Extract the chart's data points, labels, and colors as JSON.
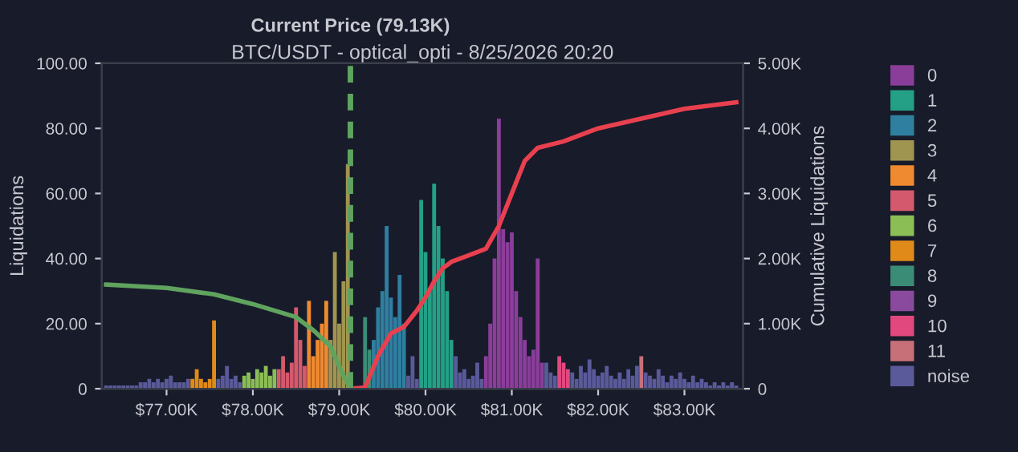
{
  "chart_data": {
    "type": "bar",
    "title": "BTC/USDT - optical_opti - 8/25/2026 20:20",
    "ylabel": "Liquidations",
    "y2label": "Cumulative Liquidations",
    "series": [
      {
        "name": "0",
        "color": "#8a3e9a",
        "x": [
          80.7,
          80.75,
          80.8,
          80.85,
          80.9,
          80.95,
          81.0,
          81.05,
          81.1,
          81.15,
          81.2,
          81.25,
          81.3,
          81.35
        ],
        "values": [
          10,
          20,
          40,
          83,
          49,
          45,
          48,
          30,
          22,
          15,
          10,
          12,
          40,
          8
        ]
      },
      {
        "name": "1",
        "color": "#23a085",
        "x": [
          79.95,
          80.0,
          80.05,
          80.1,
          80.15,
          80.2,
          80.25,
          80.3
        ],
        "values": [
          58,
          42,
          30,
          63,
          50,
          40,
          30,
          15
        ]
      },
      {
        "name": "2",
        "color": "#2e7fa0",
        "x": [
          79.4,
          79.45,
          79.5,
          79.55,
          79.6,
          79.65,
          79.7,
          79.75
        ],
        "values": [
          15,
          25,
          30,
          50,
          28,
          22,
          35,
          20
        ]
      },
      {
        "name": "3",
        "color": "#a09550",
        "x": [
          78.9,
          78.95,
          79.0,
          79.05,
          79.1
        ],
        "values": [
          15,
          42,
          20,
          33,
          69
        ]
      },
      {
        "name": "4",
        "color": "#f08a30",
        "x": [
          78.65,
          78.7,
          78.75,
          78.8,
          78.85
        ],
        "values": [
          27,
          10,
          15,
          20,
          27
        ]
      },
      {
        "name": "5",
        "color": "#d4596c",
        "x": [
          78.3,
          78.35,
          78.4,
          78.45,
          78.5,
          78.55,
          78.6
        ],
        "values": [
          6,
          10,
          5,
          8,
          25,
          15,
          7
        ]
      },
      {
        "name": "6",
        "color": "#8bbf56",
        "x": [
          77.9,
          77.95,
          78.0,
          78.05,
          78.1,
          78.15,
          78.2,
          78.25
        ],
        "values": [
          4,
          5,
          3,
          6,
          5,
          7,
          4,
          6
        ]
      },
      {
        "name": "7",
        "color": "#e08a1a",
        "x": [
          77.3,
          77.35,
          77.4,
          77.45,
          77.5,
          77.55
        ],
        "values": [
          3,
          6,
          3,
          2,
          3,
          21
        ]
      },
      {
        "name": "8",
        "color": "#3a8c76",
        "x": [
          79.3,
          79.35
        ],
        "values": [
          22,
          12
        ]
      },
      {
        "name": "9",
        "color": "#8a4a9e"
      },
      {
        "name": "10",
        "color": "#e0487e",
        "x": [
          81.55,
          81.6,
          81.65
        ],
        "values": [
          10,
          8,
          6
        ]
      },
      {
        "name": "11",
        "color": "#c87078",
        "x": [
          82.5
        ],
        "values": [
          10
        ]
      },
      {
        "name": "noise",
        "color": "#5a5a9a",
        "x": [
          76.3,
          76.35,
          76.4,
          76.45,
          76.5,
          76.55,
          76.6,
          76.65,
          76.7,
          76.75,
          76.8,
          76.85,
          76.9,
          76.95,
          77.0,
          77.05,
          77.1,
          77.15,
          77.2,
          77.25,
          77.6,
          77.65,
          77.7,
          77.75,
          77.8,
          77.85,
          79.8,
          79.85,
          79.9,
          80.35,
          80.4,
          80.45,
          80.5,
          80.55,
          80.6,
          80.65,
          81.4,
          81.45,
          81.5,
          81.7,
          81.75,
          81.8,
          81.85,
          81.9,
          81.95,
          82.0,
          82.05,
          82.1,
          82.15,
          82.2,
          82.25,
          82.3,
          82.35,
          82.4,
          82.45,
          82.55,
          82.6,
          82.65,
          82.7,
          82.75,
          82.8,
          82.85,
          82.9,
          82.95,
          83.0,
          83.05,
          83.1,
          83.15,
          83.2,
          83.25,
          83.3,
          83.35,
          83.4,
          83.45,
          83.5,
          83.55,
          83.6
        ],
        "values": [
          1,
          1,
          1,
          1,
          1,
          1,
          1,
          1,
          2,
          2,
          3,
          2,
          3,
          2,
          3,
          4,
          2,
          2,
          2,
          3,
          3,
          4,
          7,
          3,
          4,
          2,
          4,
          10,
          3,
          10,
          5,
          6,
          3,
          4,
          8,
          3,
          8,
          5,
          4,
          5,
          3,
          7,
          5,
          9,
          6,
          4,
          5,
          7,
          4,
          3,
          5,
          3,
          6,
          4,
          7,
          5,
          4,
          3,
          6,
          4,
          2,
          4,
          3,
          5,
          3,
          2,
          4,
          2,
          3,
          2,
          1,
          2,
          1,
          2,
          1,
          2,
          1
        ]
      },
      {
        "type": "line",
        "axis": "y2",
        "color": "#e8404f",
        "x": [
          79.13,
          79.3,
          79.45,
          79.6,
          79.75,
          79.9,
          80.0,
          80.1,
          80.2,
          80.3,
          80.5,
          80.7,
          80.85,
          81.0,
          81.15,
          81.3,
          81.6,
          82.0,
          82.5,
          83.0,
          83.6
        ],
        "values": [
          0,
          0.02,
          0.5,
          0.85,
          0.95,
          1.2,
          1.4,
          1.65,
          1.85,
          1.95,
          2.05,
          2.15,
          2.5,
          3.0,
          3.5,
          3.7,
          3.8,
          4.0,
          4.15,
          4.3,
          4.4
        ]
      },
      {
        "type": "line",
        "axis": "y2",
        "color": "#5fa35f",
        "x": [
          76.3,
          77.0,
          77.55,
          78.0,
          78.5,
          78.7,
          78.9,
          79.05,
          79.13
        ],
        "values": [
          1.6,
          1.55,
          1.45,
          1.3,
          1.1,
          0.9,
          0.65,
          0.2,
          0
        ]
      }
    ],
    "xlim": [
      76.25,
      83.68
    ],
    "xticks": [
      {
        "value": 77,
        "label": "$77.00K"
      },
      {
        "value": 78,
        "label": "$78.00K"
      },
      {
        "value": 79,
        "label": "$79.00K"
      },
      {
        "value": 80,
        "label": "$80.00K"
      },
      {
        "value": 81,
        "label": "$81.00K"
      },
      {
        "value": 82,
        "label": "$82.00K"
      },
      {
        "value": 83,
        "label": "$83.00K"
      }
    ],
    "ylim": [
      0,
      100
    ],
    "yticks": [
      0,
      {
        "value": 20,
        "label": "20.00"
      },
      {
        "value": 40,
        "label": "40.00"
      },
      {
        "value": 60,
        "label": "60.00"
      },
      {
        "value": 80,
        "label": "80.00"
      },
      {
        "value": 100,
        "label": "100.00"
      }
    ],
    "y2lim": [
      0,
      5
    ],
    "y2ticks": [
      0,
      {
        "value": 1,
        "label": "1.00K"
      },
      {
        "value": 2,
        "label": "2.00K"
      },
      {
        "value": 3,
        "label": "3.00K"
      },
      {
        "value": 4,
        "label": "4.00K"
      },
      {
        "value": 5,
        "label": "5.00K"
      }
    ],
    "ref_lines": [
      {
        "axis": "x",
        "value": 79.13,
        "label": "Current Price (79.13K)",
        "color": "#5fa35f",
        "line_style": "dashed"
      }
    ],
    "legend": "right",
    "grid": false
  }
}
